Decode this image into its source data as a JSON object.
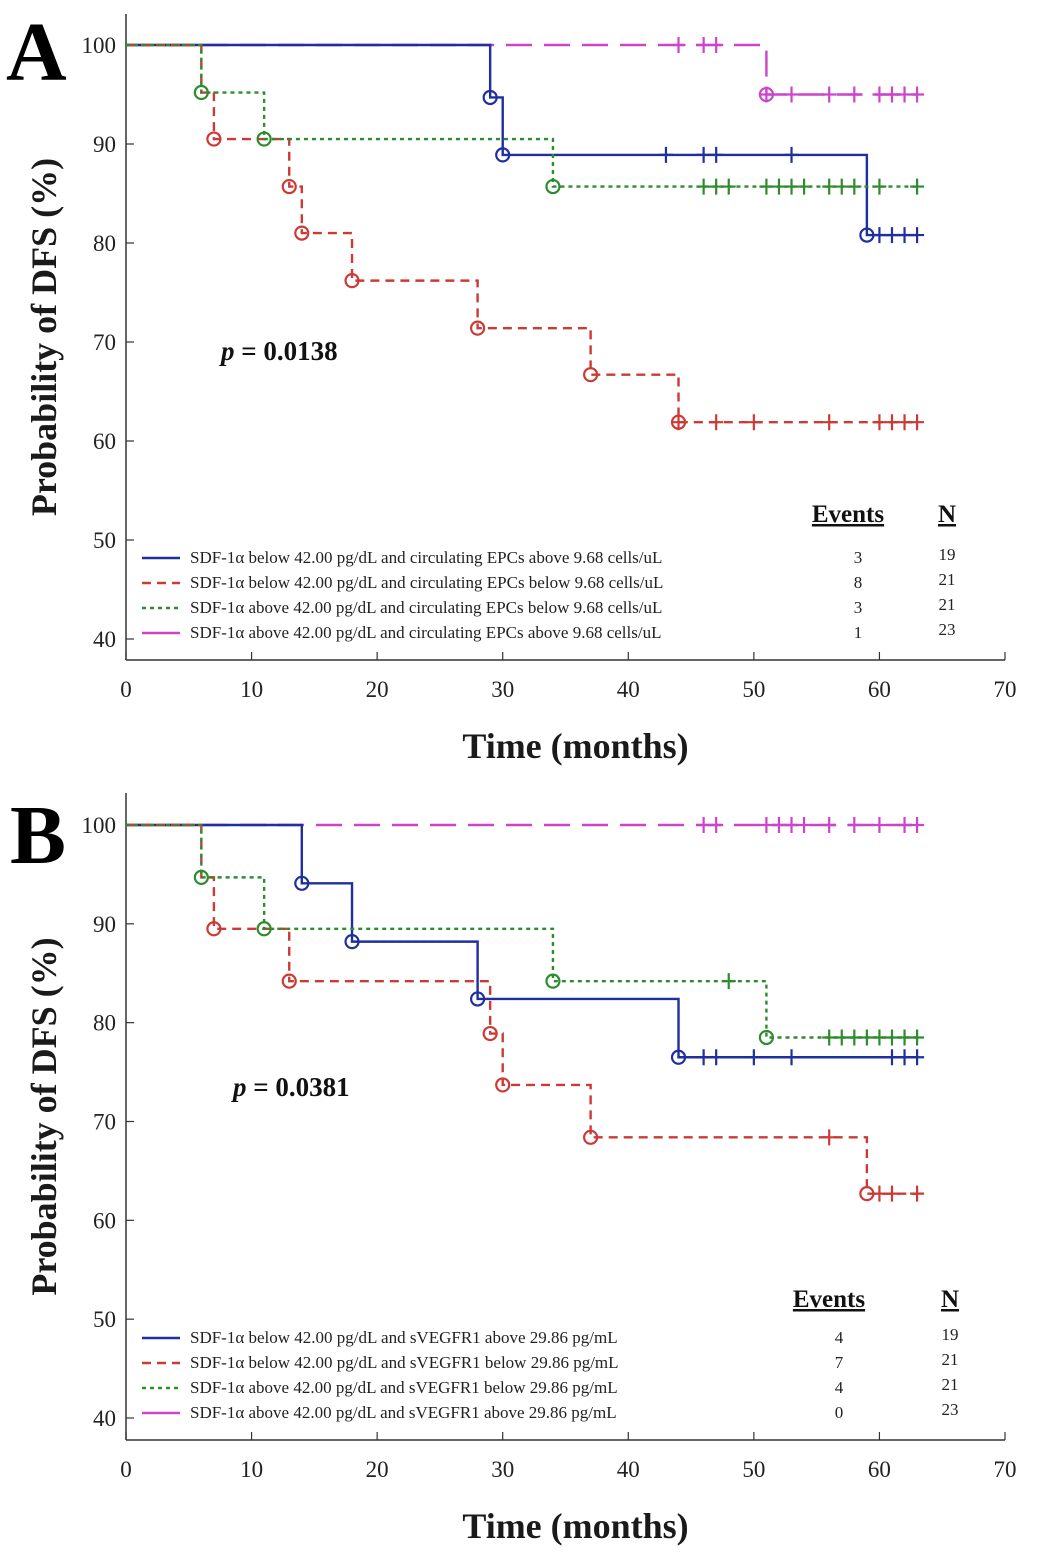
{
  "chart_data": [
    {
      "type": "line",
      "panel_label": "A",
      "xlabel": "Time (months)",
      "ylabel": "Probability of DFS (%)",
      "xlim": [
        0,
        70
      ],
      "ylim": [
        40,
        100
      ],
      "xticks": [
        "0",
        "10",
        "20",
        "30",
        "40",
        "50",
        "60",
        "70"
      ],
      "yticks": [
        "40",
        "50",
        "60",
        "70",
        "80",
        "90",
        "100"
      ],
      "annotation": {
        "prefix": "p",
        "text": " = 0.0138"
      },
      "legend_headers": {
        "events": "Events",
        "n": "N"
      },
      "series": [
        {
          "name": "SDF-1α below 42.00 pg/dL and circulating EPCs above 9.68 cells/uL",
          "color": "#1f2f9e",
          "dash": "solid",
          "events": "3",
          "n": "19",
          "steps": [
            [
              0,
              100
            ],
            [
              29,
              94.7
            ],
            [
              30,
              88.9
            ],
            [
              59,
              80.8
            ],
            [
              63,
              80.8
            ]
          ],
          "event_marks": [
            [
              29,
              94.7
            ],
            [
              30,
              88.9
            ],
            [
              59,
              80.8
            ]
          ],
          "censor_marks": [
            [
              43,
              88.9
            ],
            [
              46,
              88.9
            ],
            [
              47,
              88.9
            ],
            [
              53,
              88.9
            ],
            [
              60,
              80.8
            ],
            [
              61,
              80.8
            ],
            [
              62,
              80.8
            ],
            [
              63,
              80.8
            ]
          ]
        },
        {
          "name": "SDF-1α below 42.00 pg/dL and circulating EPCs below 9.68 cells/uL",
          "color": "#cc3a35",
          "dash": "dash",
          "events": "8",
          "n": "21",
          "steps": [
            [
              0,
              100
            ],
            [
              6,
              95.2
            ],
            [
              7,
              90.5
            ],
            [
              13,
              85.7
            ],
            [
              14,
              81.0
            ],
            [
              18,
              76.2
            ],
            [
              28,
              71.4
            ],
            [
              37,
              66.7
            ],
            [
              44,
              61.9
            ],
            [
              63,
              61.9
            ]
          ],
          "event_marks": [
            [
              7,
              90.5
            ],
            [
              13,
              85.7
            ],
            [
              14,
              81.0
            ],
            [
              18,
              76.2
            ],
            [
              28,
              71.4
            ],
            [
              37,
              66.7
            ],
            [
              44,
              61.9
            ]
          ],
          "censor_marks": [
            [
              44,
              61.9
            ],
            [
              47,
              61.9
            ],
            [
              50,
              61.9
            ],
            [
              56,
              61.9
            ],
            [
              60,
              61.9
            ],
            [
              61,
              61.9
            ],
            [
              62,
              61.9
            ],
            [
              63,
              61.9
            ]
          ]
        },
        {
          "name": "SDF-1α above 42.00 pg/dL and circulating EPCs below 9.68 cells/uL",
          "color": "#2e8b2e",
          "dash": "dot",
          "events": "3",
          "n": "21",
          "steps": [
            [
              0,
              100
            ],
            [
              6,
              95.2
            ],
            [
              11,
              90.5
            ],
            [
              34,
              85.7
            ],
            [
              63,
              85.7
            ]
          ],
          "event_marks": [
            [
              6,
              95.2
            ],
            [
              11,
              90.5
            ],
            [
              34,
              85.7
            ]
          ],
          "censor_marks": [
            [
              46,
              85.7
            ],
            [
              47,
              85.7
            ],
            [
              48,
              85.7
            ],
            [
              51,
              85.7
            ],
            [
              52,
              85.7
            ],
            [
              53,
              85.7
            ],
            [
              54,
              85.7
            ],
            [
              56,
              85.7
            ],
            [
              57,
              85.7
            ],
            [
              58,
              85.7
            ],
            [
              60,
              85.7
            ],
            [
              63,
              85.7
            ]
          ]
        },
        {
          "name": "SDF-1α above 42.00 pg/dL and circulating EPCs above 9.68 cells/uL",
          "color": "#cc44cc",
          "dash": "longdash",
          "events": "1",
          "n": "23",
          "steps": [
            [
              0,
              100
            ],
            [
              51,
              95.0
            ],
            [
              63,
              95.0
            ]
          ],
          "event_marks": [
            [
              51,
              95.0
            ]
          ],
          "censor_marks": [
            [
              44,
              100
            ],
            [
              46,
              100
            ],
            [
              47,
              100
            ],
            [
              51,
              95.0
            ],
            [
              53,
              95.0
            ],
            [
              56,
              95.0
            ],
            [
              58,
              95.0
            ],
            [
              60,
              95.0
            ],
            [
              61,
              95.0
            ],
            [
              62,
              95.0
            ],
            [
              63,
              95.0
            ]
          ]
        }
      ]
    },
    {
      "type": "line",
      "panel_label": "B",
      "xlabel": "Time (months)",
      "ylabel": "Probability of DFS (%)",
      "xlim": [
        0,
        70
      ],
      "ylim": [
        40,
        100
      ],
      "xticks": [
        "0",
        "10",
        "20",
        "30",
        "40",
        "50",
        "60",
        "70"
      ],
      "yticks": [
        "40",
        "50",
        "60",
        "70",
        "80",
        "90",
        "100"
      ],
      "annotation": {
        "prefix": "p",
        "text": " = 0.0381"
      },
      "legend_headers": {
        "events": "Events",
        "n": "N"
      },
      "series": [
        {
          "name": "SDF-1α below 42.00 pg/dL and sVEGFR1 above 29.86 pg/mL",
          "color": "#1f2f9e",
          "dash": "solid",
          "events": "4",
          "n": "19",
          "steps": [
            [
              0,
              100
            ],
            [
              14,
              94.1
            ],
            [
              18,
              88.2
            ],
            [
              28,
              82.4
            ],
            [
              44,
              76.5
            ],
            [
              63,
              76.5
            ]
          ],
          "event_marks": [
            [
              14,
              94.1
            ],
            [
              18,
              88.2
            ],
            [
              28,
              82.4
            ],
            [
              44,
              76.5
            ]
          ],
          "censor_marks": [
            [
              46,
              76.5
            ],
            [
              47,
              76.5
            ],
            [
              50,
              76.5
            ],
            [
              53,
              76.5
            ],
            [
              61,
              76.5
            ],
            [
              62,
              76.5
            ],
            [
              63,
              76.5
            ]
          ]
        },
        {
          "name": "SDF-1α below 42.00 pg/dL and sVEGFR1 below 29.86 pg/mL",
          "color": "#cc3a35",
          "dash": "dash",
          "events": "7",
          "n": "21",
          "steps": [
            [
              0,
              100
            ],
            [
              6,
              94.7
            ],
            [
              7,
              89.5
            ],
            [
              13,
              84.2
            ],
            [
              29,
              78.9
            ],
            [
              30,
              73.7
            ],
            [
              37,
              68.4
            ],
            [
              59,
              62.7
            ],
            [
              63,
              62.7
            ]
          ],
          "event_marks": [
            [
              7,
              89.5
            ],
            [
              13,
              84.2
            ],
            [
              29,
              78.9
            ],
            [
              30,
              73.7
            ],
            [
              37,
              68.4
            ],
            [
              59,
              62.7
            ]
          ],
          "censor_marks": [
            [
              56,
              68.4
            ],
            [
              60,
              62.7
            ],
            [
              61,
              62.7
            ],
            [
              63,
              62.7
            ]
          ]
        },
        {
          "name": "SDF-1α above 42.00 pg/dL and sVEGFR1 below 29.86 pg/mL",
          "color": "#2e8b2e",
          "dash": "dot",
          "events": "4",
          "n": "21",
          "steps": [
            [
              0,
              100
            ],
            [
              6,
              94.7
            ],
            [
              11,
              89.5
            ],
            [
              34,
              84.2
            ],
            [
              51,
              78.5
            ],
            [
              63,
              78.5
            ]
          ],
          "event_marks": [
            [
              6,
              94.7
            ],
            [
              11,
              89.5
            ],
            [
              34,
              84.2
            ],
            [
              51,
              78.5
            ]
          ],
          "censor_marks": [
            [
              48,
              84.2
            ],
            [
              56,
              78.5
            ],
            [
              57,
              78.5
            ],
            [
              58,
              78.5
            ],
            [
              59,
              78.5
            ],
            [
              60,
              78.5
            ],
            [
              61,
              78.5
            ],
            [
              62,
              78.5
            ],
            [
              63,
              78.5
            ]
          ]
        },
        {
          "name": "SDF-1α above 42.00 pg/dL and sVEGFR1 above 29.86 pg/mL",
          "color": "#cc44cc",
          "dash": "longdash",
          "events": "0",
          "n": "23",
          "steps": [
            [
              0,
              100
            ],
            [
              63,
              100
            ]
          ],
          "event_marks": [],
          "censor_marks": [
            [
              46,
              100
            ],
            [
              47,
              100
            ],
            [
              51,
              100
            ],
            [
              52,
              100
            ],
            [
              53,
              100
            ],
            [
              54,
              100
            ],
            [
              56,
              100
            ],
            [
              58,
              100
            ],
            [
              60,
              100
            ],
            [
              62,
              100
            ],
            [
              63,
              100
            ]
          ]
        }
      ]
    }
  ]
}
